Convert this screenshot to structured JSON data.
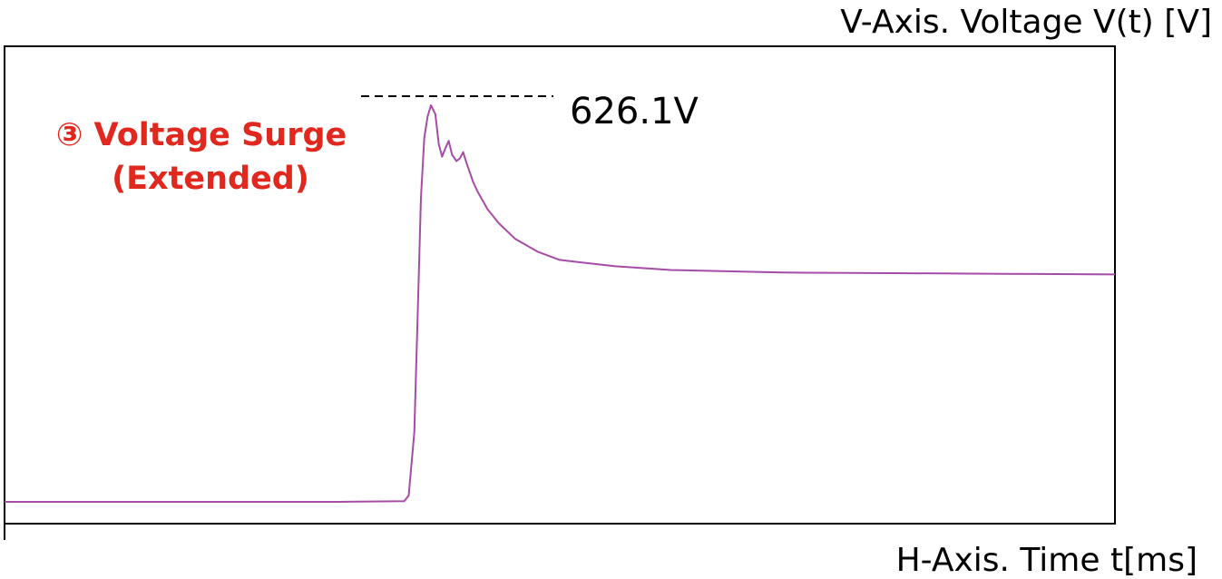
{
  "chart_data": {
    "type": "line",
    "title": "",
    "xlabel": "H-Axis. Time t[ms]",
    "ylabel": "V-Axis. Voltage V(t) [V]",
    "ylim": [
      0,
      720
    ],
    "grid": false,
    "series": [
      {
        "color": "#a64ca6",
        "x": [
          0,
          10,
          20,
          30,
          36,
          36.4,
          36.9,
          37.2,
          37.5,
          37.8,
          38.1,
          38.4,
          38.8,
          39.1,
          39.4,
          39.7,
          40.0,
          40.3,
          40.7,
          41.0,
          41.3,
          41.6,
          41.9,
          42.2,
          42.6,
          43.5,
          44.5,
          46,
          48,
          50,
          55,
          60,
          70,
          80,
          90,
          100
        ],
        "y": [
          0,
          0,
          0,
          0,
          1,
          10,
          110,
          290,
          480,
          575,
          608,
          626.1,
          612,
          565,
          545,
          558,
          570,
          548,
          538,
          542,
          552,
          535,
          520,
          505,
          490,
          462,
          440,
          415,
          395,
          382,
          372,
          366,
          362,
          361,
          360,
          359
        ]
      }
    ],
    "annotations": {
      "peak_label": "626.1V",
      "surge_label_line1": "③ Voltage Surge",
      "surge_label_line2": "(Extended)",
      "surge_color": "#e0281e"
    }
  }
}
